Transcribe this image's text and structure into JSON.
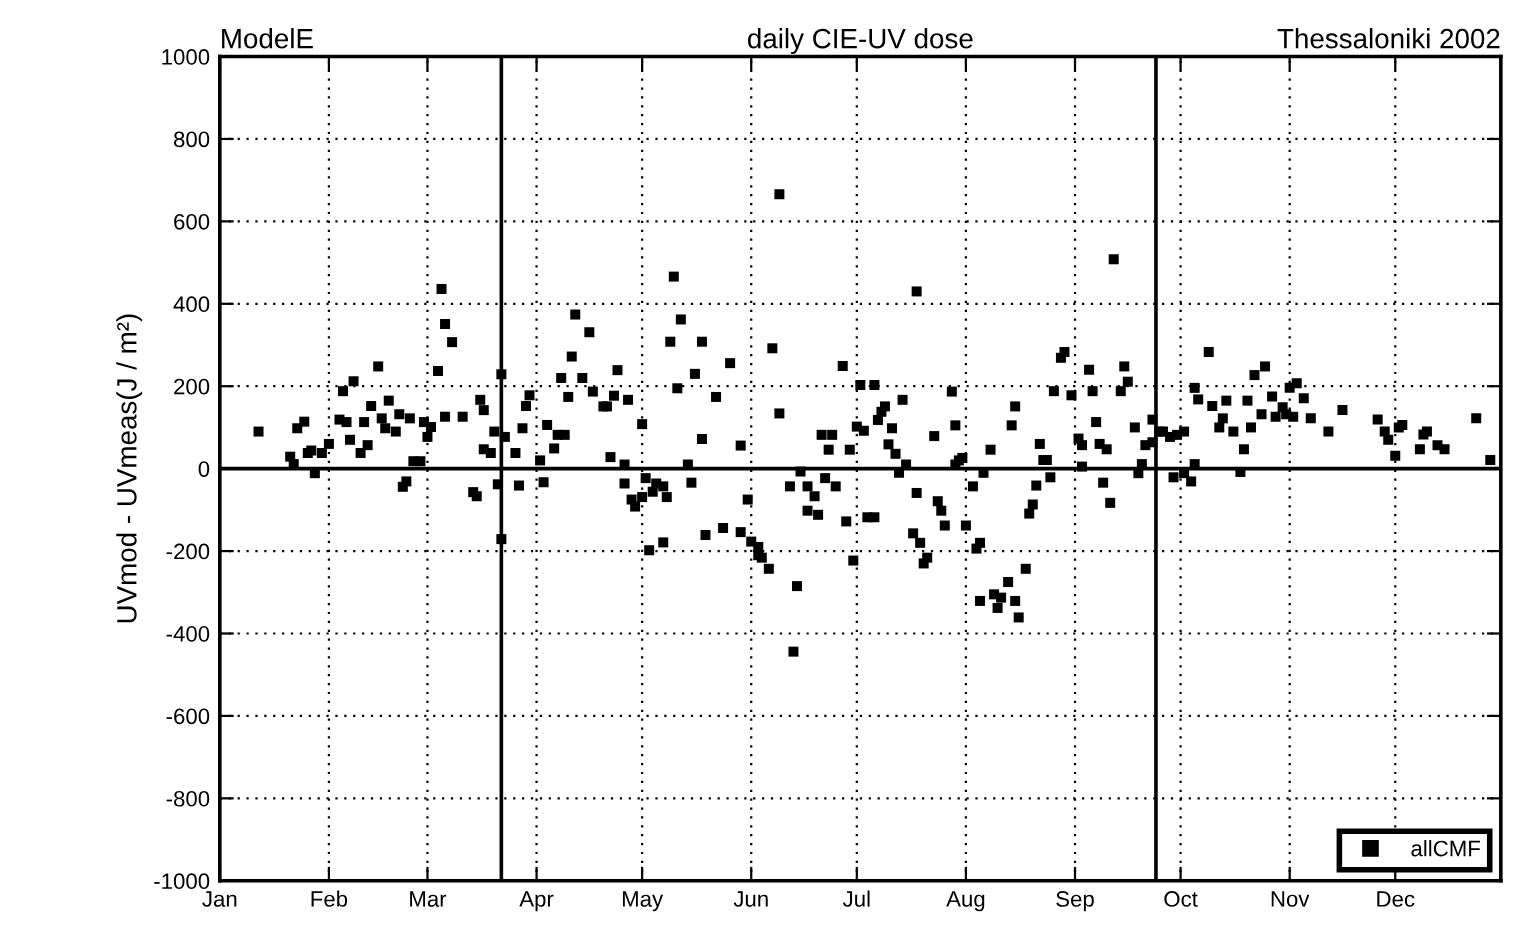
{
  "chart_data": {
    "type": "scatter",
    "title": "daily CIE-UV dose",
    "ylabel": "UVmod - UVmeas(J / m²)",
    "annotations": [
      "ModelE",
      "Thessaloniki 2002"
    ],
    "xlim": [
      "2002-01-01",
      "2002-12-31"
    ],
    "ylim": [
      -1000,
      1000
    ],
    "xticks": [
      {
        "value": "2002-01-01",
        "label": "Jan"
      },
      {
        "value": "2002-02-01",
        "label": "Feb"
      },
      {
        "value": "2002-03-01",
        "label": "Mar"
      },
      {
        "value": "2002-04-01",
        "label": "Apr"
      },
      {
        "value": "2002-05-01",
        "label": "May"
      },
      {
        "value": "2002-06-01",
        "label": "Jun"
      },
      {
        "value": "2002-07-01",
        "label": "Jul"
      },
      {
        "value": "2002-08-01",
        "label": "Aug"
      },
      {
        "value": "2002-09-01",
        "label": "Sep"
      },
      {
        "value": "2002-10-01",
        "label": "Oct"
      },
      {
        "value": "2002-11-01",
        "label": "Nov"
      },
      {
        "value": "2002-12-01",
        "label": "Dec"
      }
    ],
    "yticks": [
      -1000,
      -800,
      -600,
      -400,
      -200,
      0,
      200,
      400,
      600,
      800,
      1000
    ],
    "grid": true,
    "legend": "bottom right",
    "marker": "square",
    "ref_lines": [
      {
        "axis": "y",
        "value": 0,
        "color": "#000000"
      },
      {
        "axis": "x",
        "value": "2002-03-22",
        "color": "#000000"
      },
      {
        "axis": "x",
        "value": "2002-09-24",
        "color": "#000000"
      }
    ],
    "series": [
      {
        "name": "allCMF",
        "color": "#000000",
        "x": [
          "2002-01-12",
          "2002-01-21",
          "2002-01-22",
          "2002-01-23",
          "2002-01-25",
          "2002-01-26",
          "2002-01-28",
          "2002-01-27",
          "2002-01-30",
          "2002-02-01",
          "2002-02-05",
          "2002-02-04",
          "2002-02-06",
          "2002-02-07",
          "2002-02-08",
          "2002-02-10",
          "2002-02-11",
          "2002-02-12",
          "2002-02-13",
          "2002-02-15",
          "2002-02-16",
          "2002-02-17",
          "2002-02-18",
          "2002-02-20",
          "2002-02-21",
          "2002-02-22",
          "2002-02-23",
          "2002-02-24",
          "2002-02-25",
          "2002-02-27",
          "2002-02-28",
          "2002-03-01",
          "2002-03-02",
          "2002-03-04",
          "2002-03-05",
          "2002-03-06",
          "2002-03-08",
          "2002-03-06",
          "2002-03-11",
          "2002-03-14",
          "2002-03-15",
          "2002-03-16",
          "2002-03-17",
          "2002-03-17",
          "2002-03-19",
          "2002-03-20",
          "2002-03-21",
          "2002-03-22",
          "2002-03-22",
          "2002-03-23",
          "2002-03-26",
          "2002-03-27",
          "2002-03-28",
          "2002-03-29",
          "2002-03-30",
          "2002-04-02",
          "2002-04-03",
          "2002-04-04",
          "2002-04-06",
          "2002-04-07",
          "2002-04-08",
          "2002-04-09",
          "2002-04-10",
          "2002-04-11",
          "2002-04-12",
          "2002-04-14",
          "2002-04-16",
          "2002-04-17",
          "2002-04-20",
          "2002-04-21",
          "2002-04-22",
          "2002-04-23",
          "2002-04-24",
          "2002-04-26",
          "2002-04-26",
          "2002-04-27",
          "2002-04-28",
          "2002-04-29",
          "2002-05-01",
          "2002-05-01",
          "2002-05-02",
          "2002-05-03",
          "2002-05-04",
          "2002-05-05",
          "2002-05-07",
          "2002-05-07",
          "2002-05-08",
          "2002-05-09",
          "2002-05-10",
          "2002-05-11",
          "2002-05-12",
          "2002-05-14",
          "2002-05-15",
          "2002-05-16",
          "2002-05-18",
          "2002-05-18",
          "2002-05-19",
          "2002-05-22",
          "2002-05-24",
          "2002-05-26",
          "2002-05-29",
          "2002-05-29",
          "2002-05-31",
          "2002-06-01",
          "2002-06-03",
          "2002-06-03",
          "2002-06-04",
          "2002-06-06",
          "2002-06-07",
          "2002-06-09",
          "2002-06-09",
          "2002-06-12",
          "2002-06-13",
          "2002-06-14",
          "2002-06-15",
          "2002-06-17",
          "2002-06-17",
          "2002-06-19",
          "2002-06-20",
          "2002-06-21",
          "2002-06-22",
          "2002-06-23",
          "2002-06-24",
          "2002-06-25",
          "2002-06-27",
          "2002-06-28",
          "2002-06-29",
          "2002-06-30",
          "2002-07-01",
          "2002-07-02",
          "2002-07-03",
          "2002-07-04",
          "2002-07-06",
          "2002-07-06",
          "2002-07-07",
          "2002-07-08",
          "2002-07-09",
          "2002-07-10",
          "2002-07-11",
          "2002-07-12",
          "2002-07-13",
          "2002-07-14",
          "2002-07-15",
          "2002-07-17",
          "2002-07-18",
          "2002-07-18",
          "2002-07-19",
          "2002-07-20",
          "2002-07-21",
          "2002-07-23",
          "2002-07-24",
          "2002-07-25",
          "2002-07-26",
          "2002-07-28",
          "2002-07-29",
          "2002-07-29",
          "2002-07-30",
          "2002-07-31",
          "2002-08-01",
          "2002-08-03",
          "2002-08-04",
          "2002-08-05",
          "2002-08-05",
          "2002-08-06",
          "2002-08-08",
          "2002-08-09",
          "2002-08-10",
          "2002-08-11",
          "2002-08-13",
          "2002-08-14",
          "2002-08-15",
          "2002-08-15",
          "2002-08-16",
          "2002-08-18",
          "2002-08-19",
          "2002-08-20",
          "2002-08-21",
          "2002-08-22",
          "2002-08-23",
          "2002-08-24",
          "2002-08-25",
          "2002-08-26",
          "2002-08-28",
          "2002-08-29",
          "2002-08-31",
          "2002-09-02",
          "2002-09-03",
          "2002-09-03",
          "2002-09-05",
          "2002-09-06",
          "2002-09-07",
          "2002-09-08",
          "2002-09-09",
          "2002-09-10",
          "2002-09-11",
          "2002-09-12",
          "2002-09-14",
          "2002-09-15",
          "2002-09-16",
          "2002-09-18",
          "2002-09-19",
          "2002-09-20",
          "2002-09-21",
          "2002-09-23",
          "2002-09-23",
          "2002-09-25",
          "2002-09-26",
          "2002-09-28",
          "2002-09-29",
          "2002-09-30",
          "2002-10-02",
          "2002-10-02",
          "2002-10-04",
          "2002-10-05",
          "2002-10-05",
          "2002-10-06",
          "2002-10-09",
          "2002-10-10",
          "2002-10-12",
          "2002-10-13",
          "2002-10-14",
          "2002-10-16",
          "2002-10-18",
          "2002-10-19",
          "2002-10-20",
          "2002-10-21",
          "2002-10-22",
          "2002-10-24",
          "2002-10-25",
          "2002-10-27",
          "2002-10-28",
          "2002-10-30",
          "2002-10-31",
          "2002-11-01",
          "2002-11-02",
          "2002-11-03",
          "2002-11-05",
          "2002-11-07",
          "2002-11-12",
          "2002-11-16",
          "2002-11-26",
          "2002-11-28",
          "2002-11-29",
          "2002-12-01",
          "2002-12-02",
          "2002-12-03",
          "2002-12-08",
          "2002-12-09",
          "2002-12-10",
          "2002-12-13",
          "2002-12-15",
          "2002-12-24",
          "2002-12-28"
        ],
        "values": [
          90,
          29,
          11,
          98,
          114,
          38,
          -11,
          44,
          38,
          60,
          188,
          119,
          113,
          70,
          212,
          38,
          113,
          57,
          152,
          248,
          122,
          98,
          165,
          90,
          132,
          -44,
          -31,
          122,
          18,
          18,
          113,
          77,
          101,
          237,
          436,
          351,
          307,
          126,
          126,
          -57,
          -67,
          167,
          142,
          47,
          38,
          90,
          -38,
          -171,
          229,
          77,
          38,
          -41,
          98,
          152,
          178,
          20,
          -33,
          106,
          49,
          82,
          220,
          82,
          174,
          272,
          374,
          220,
          331,
          187,
          151,
          151,
          28,
          177,
          239,
          -36,
          10,
          167,
          -75,
          -92,
          -69,
          108,
          -23,
          -198,
          -56,
          -36,
          -43,
          -179,
          -69,
          308,
          466,
          195,
          362,
          10,
          -34,
          230,
          308,
          72,
          -161,
          174,
          -144,
          256,
          -154,
          56,
          -75,
          -177,
          -190,
          -210,
          -216,
          -243,
          292,
          134,
          666,
          -43,
          -444,
          -285,
          -7,
          -102,
          -43,
          -67,
          -112,
          82,
          -23,
          46,
          82,
          -43,
          249,
          -128,
          46,
          -223,
          102,
          203,
          92,
          -118,
          -118,
          203,
          118,
          138,
          151,
          59,
          98,
          36,
          -10,
          167,
          10,
          -157,
          430,
          -59,
          -180,
          -230,
          -216,
          79,
          -79,
          -102,
          -138,
          187,
          10,
          105,
          20,
          26,
          -138,
          -43,
          -194,
          -180,
          -321,
          -10,
          46,
          -305,
          -338,
          -313,
          -275,
          105,
          151,
          -321,
          -361,
          -243,
          -109,
          -87,
          -41,
          60,
          21,
          21,
          -21,
          188,
          269,
          283,
          178,
          73,
          5,
          57,
          240,
          188,
          113,
          60,
          -34,
          47,
          -83,
          508,
          188,
          248,
          211,
          100,
          -11,
          11,
          57,
          119,
          64,
          90,
          90,
          77,
          -21,
          82,
          -11,
          90,
          -31,
          196,
          11,
          168,
          283,
          152,
          100,
          122,
          165,
          90,
          -8,
          47,
          165,
          100,
          227,
          132,
          248,
          175,
          126,
          149,
          132,
          196,
          126,
          207,
          171,
          122,
          90,
          142,
          119,
          90,
          70,
          31,
          100,
          106,
          47,
          83,
          90,
          57,
          47,
          122,
          21
        ]
      }
    ]
  }
}
